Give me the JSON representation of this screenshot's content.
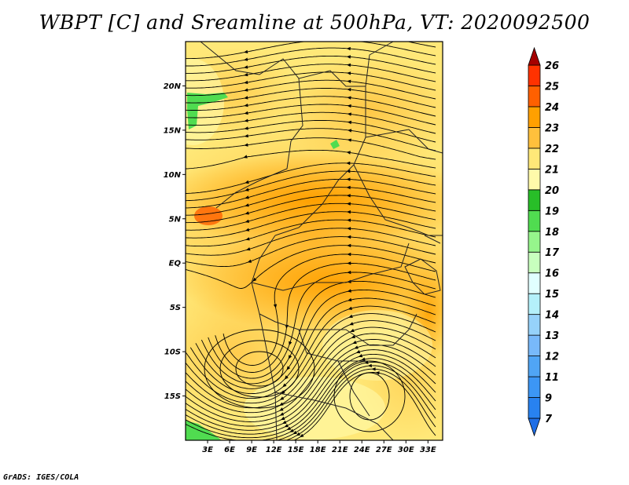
{
  "title": "WBPT [C] and Sreamline at 500hPa, VT: 2020092500",
  "credit": "GrADS: IGES/COLA",
  "map": {
    "variable": "WBPT [C]",
    "level": "500hPa",
    "valid_time": "2020092500",
    "lat_ticks": [
      {
        "value": 20,
        "label": "20N"
      },
      {
        "value": 15,
        "label": "15N"
      },
      {
        "value": 10,
        "label": "10N"
      },
      {
        "value": 5,
        "label": "5N"
      },
      {
        "value": 0,
        "label": "EQ"
      },
      {
        "value": -5,
        "label": "5S"
      },
      {
        "value": -10,
        "label": "10S"
      },
      {
        "value": -15,
        "label": "15S"
      }
    ],
    "lon_ticks": [
      {
        "value": 3,
        "label": "3E"
      },
      {
        "value": 6,
        "label": "6E"
      },
      {
        "value": 9,
        "label": "9E"
      },
      {
        "value": 12,
        "label": "12E"
      },
      {
        "value": 15,
        "label": "15E"
      },
      {
        "value": 18,
        "label": "18E"
      },
      {
        "value": 21,
        "label": "21E"
      },
      {
        "value": 24,
        "label": "24E"
      },
      {
        "value": 27,
        "label": "27E"
      },
      {
        "value": 30,
        "label": "30E"
      },
      {
        "value": 33,
        "label": "33E"
      }
    ],
    "lat_range": [
      -20,
      25
    ],
    "lon_range": [
      0,
      35
    ]
  },
  "colorbar": {
    "levels": [
      "7",
      "9",
      "11",
      "12",
      "13",
      "14",
      "15",
      "16",
      "17",
      "18",
      "19",
      "20",
      "21",
      "22",
      "23",
      "24",
      "25",
      "26"
    ],
    "colors": [
      "#1e6ee6",
      "#2882f0",
      "#3c96f5",
      "#50a5f5",
      "#78b9fa",
      "#96d2fa",
      "#b4f0fa",
      "#e1ffff",
      "#c8ffbe",
      "#96f58c",
      "#50dc50",
      "#28be28",
      "#fffaaa",
      "#ffe878",
      "#ffc03c",
      "#ffa000",
      "#ff6000",
      "#ff3200",
      "#e11400",
      "#a50000"
    ]
  }
}
